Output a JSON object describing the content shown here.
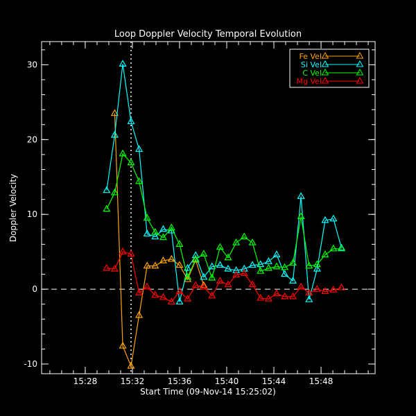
{
  "chart_data": {
    "type": "line",
    "title": "Loop Doppler Velocity Temporal Evolution",
    "xlabel": "Start Time (09-Nov-14 15:25:02)",
    "ylabel": "Doppler Velocity",
    "xlim": [
      "15:24:18",
      "15:52:35"
    ],
    "ylim": [
      -11.3,
      33.1
    ],
    "xticks": [
      "15:28",
      "15:32",
      "15:36",
      "15:40",
      "15:44",
      "15:48"
    ],
    "yticks": [
      -10,
      0,
      10,
      20,
      30
    ],
    "x": [
      "15:29:49",
      "15:30:30",
      "15:31:11",
      "15:31:53",
      "15:32:34",
      "15:33:15",
      "15:33:56",
      "15:34:37",
      "15:35:19",
      "15:36:00",
      "15:36:41",
      "15:37:22",
      "15:38:03",
      "15:38:45",
      "15:39:26",
      "15:40:07",
      "15:40:48",
      "15:41:29",
      "15:42:11",
      "15:42:52",
      "15:43:33",
      "15:44:14",
      "15:44:55",
      "15:45:37",
      "15:46:18",
      "15:46:59",
      "15:47:40",
      "15:48:21",
      "15:49:03",
      "15:49:44"
    ],
    "reference_lines": {
      "zero_dashed_y": 0,
      "dotted_vertical_x": "15:31:53"
    },
    "legend_position": "top-right",
    "grid": false,
    "series": [
      {
        "name": "Fe Vel",
        "color": "#ffa500",
        "marker": "triangle",
        "values": [
          null,
          23.5,
          -7.6,
          -10.3,
          -3.5,
          3.1,
          3.1,
          3.8,
          4.0,
          3.2,
          1.3,
          3.9,
          0.5,
          null,
          null,
          null,
          null,
          null,
          null,
          null,
          null,
          null,
          null,
          null,
          null,
          null,
          null,
          null,
          null,
          null
        ]
      },
      {
        "name": "Si Vel",
        "color": "#00ffff",
        "marker": "triangle",
        "values": [
          13.2,
          20.6,
          30.1,
          22.4,
          18.7,
          7.4,
          7.0,
          8.0,
          7.8,
          -1.7,
          2.8,
          4.5,
          1.6,
          3.0,
          3.2,
          2.7,
          2.5,
          2.7,
          3.2,
          3.3,
          3.7,
          4.6,
          2.0,
          1.1,
          12.4,
          -1.4,
          2.7,
          9.2,
          9.4,
          5.5
        ]
      },
      {
        "name": "C Vel",
        "color": "#00ff00",
        "marker": "triangle",
        "values": [
          10.7,
          12.9,
          18.1,
          16.9,
          14.4,
          9.5,
          7.6,
          6.9,
          8.2,
          6.0,
          1.6,
          4.0,
          4.7,
          1.5,
          5.6,
          4.2,
          6.2,
          7.0,
          6.2,
          2.4,
          2.8,
          3.0,
          2.9,
          3.5,
          9.7,
          3.1,
          3.3,
          4.6,
          5.4,
          5.4
        ]
      },
      {
        "name": "Mg Vel",
        "color": "#ff0000",
        "marker": "triangle",
        "values": [
          2.8,
          2.7,
          5.0,
          4.7,
          -0.5,
          0.3,
          -0.8,
          -1.1,
          -1.7,
          -0.3,
          -1.3,
          0.5,
          0.3,
          -0.9,
          1.1,
          0.6,
          1.9,
          2.1,
          0.6,
          -1.2,
          -1.3,
          -0.6,
          -1.0,
          -1.0,
          0.3,
          -0.5,
          0.0,
          -0.3,
          -0.1,
          0.2
        ]
      }
    ]
  }
}
